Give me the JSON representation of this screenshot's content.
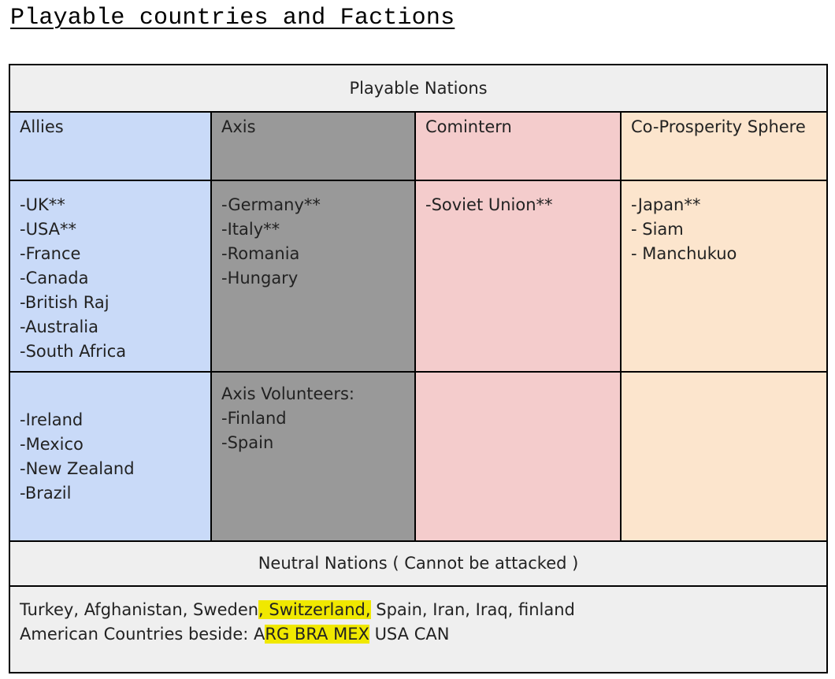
{
  "document": {
    "title": "Playable countries and Factions"
  },
  "table": {
    "header": "Playable Nations",
    "factions": {
      "allies": "Allies",
      "axis": "Axis",
      "comintern": "Comintern",
      "co_prosperity": "Co-Prosperity Sphere"
    },
    "major": {
      "allies": [
        "-UK**",
        "-USA**",
        "-France",
        "-Canada",
        "-British Raj",
        "-Australia",
        "-South Africa"
      ],
      "axis": [
        "-Germany**",
        "-Italy**",
        "-Romania",
        "-Hungary"
      ],
      "comintern": [
        "-Soviet Union**"
      ],
      "co_prosperity": [
        "-Japan**",
        "- Siam",
        "- Manchukuo"
      ]
    },
    "minor": {
      "allies": [
        "-Ireland",
        "-Mexico",
        "-New Zealand",
        "-Brazil"
      ],
      "axis": [
        "Axis Volunteers:",
        "-Finland",
        "-Spain"
      ]
    },
    "neutral_header": "Neutral Nations ( Cannot be attacked )",
    "neutral": {
      "line1_a": "Turkey, Afghanistan, Sweden",
      "line1_highlight": ", Switzerland,",
      "line1_b": " Spain, Iran, Iraq, finland",
      "line2_a": "American Countries beside: A",
      "line2_highlight": "RG BRA MEX",
      "line2_b": " USA CAN"
    }
  },
  "colors": {
    "allies": "#c9daf8",
    "axis": "#999999",
    "comintern": "#f4cccc",
    "co_prosperity": "#fce5cd",
    "header_bg": "#efefef",
    "highlight": "#f0e800"
  }
}
